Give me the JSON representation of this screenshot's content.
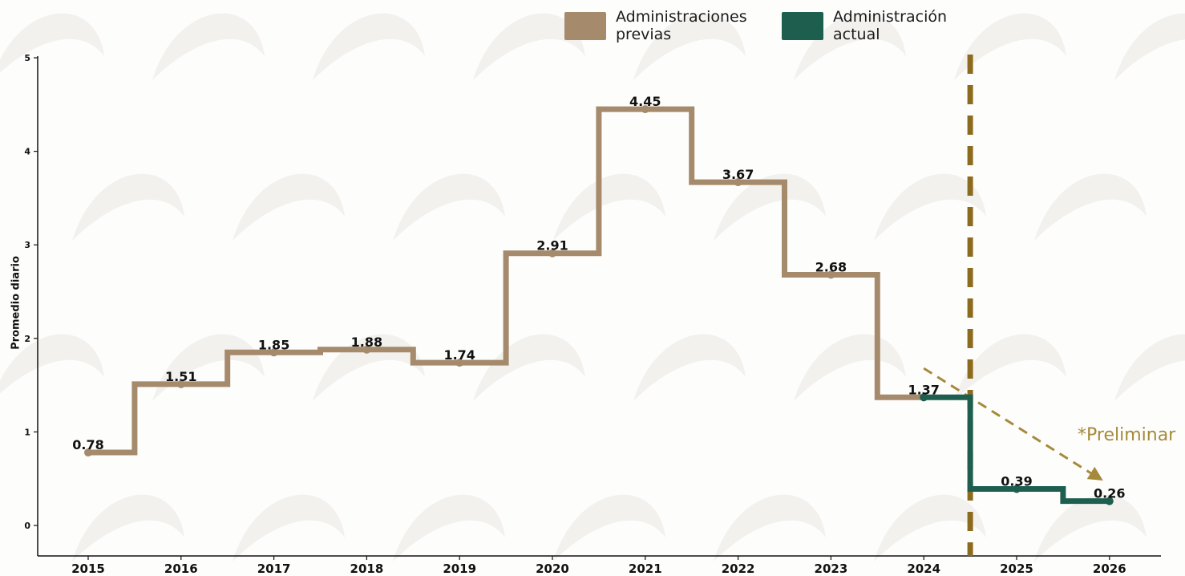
{
  "chart_data": {
    "type": "line",
    "step": "mid",
    "ylabel": "Promedio diario",
    "ylim": [
      0,
      5
    ],
    "yticks": [
      "0",
      "1",
      "2",
      "3",
      "4",
      "5"
    ],
    "x": [
      "2015",
      "2016",
      "2017",
      "2018",
      "2019",
      "2020",
      "2021",
      "2022",
      "2023",
      "2024",
      "2025",
      "2026"
    ],
    "series": [
      {
        "name": "Administraciones previas",
        "color": "#a58a6c",
        "x": [
          "2015",
          "2016",
          "2017",
          "2018",
          "2019",
          "2020",
          "2021",
          "2022",
          "2023",
          "2024"
        ],
        "values": [
          0.78,
          1.51,
          1.85,
          1.88,
          1.74,
          2.91,
          4.45,
          3.67,
          2.68,
          1.37
        ]
      },
      {
        "name": "Administración actual",
        "color": "#1e5e4e",
        "x": [
          "2024",
          "2025",
          "2026"
        ],
        "values": [
          1.37,
          0.39,
          0.26
        ]
      }
    ],
    "data_labels": [
      "0.78",
      "1.51",
      "1.85",
      "1.88",
      "1.74",
      "2.91",
      "4.45",
      "3.67",
      "2.68",
      "1.37",
      "0.39",
      "0.26"
    ],
    "annotation": "*Preliminar",
    "annotation_color": "#a58a3b",
    "divider_color": "#8c6b1f",
    "grid": false,
    "legend_position": "top"
  }
}
